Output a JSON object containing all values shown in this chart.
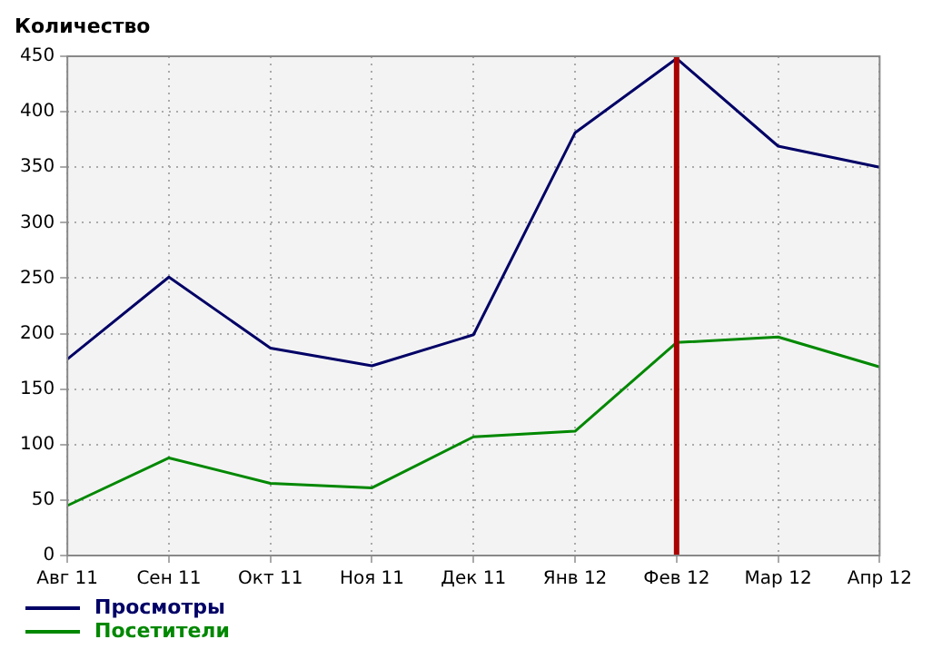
{
  "chart_data": {
    "type": "line",
    "ylabel": "Количество",
    "categories": [
      "Авг 11",
      "Сен 11",
      "Окт 11",
      "Ноя 11",
      "Дек 11",
      "Янв 12",
      "Фев 12",
      "Мар 12",
      "Апр 12"
    ],
    "series": [
      {
        "name": "Просмотры",
        "color": "#000066",
        "values": [
          177,
          251,
          187,
          171,
          199,
          381,
          448,
          369,
          350
        ]
      },
      {
        "name": "Посетители",
        "color": "#008800",
        "values": [
          45,
          88,
          65,
          61,
          107,
          112,
          192,
          197,
          170
        ]
      }
    ],
    "ylim": [
      0,
      450
    ],
    "yticks": [
      0,
      50,
      100,
      150,
      200,
      250,
      300,
      350,
      400,
      450
    ],
    "grid": true,
    "legend": "bottom left",
    "marker": "none",
    "line_style": "solid",
    "ref_lines": [
      {
        "axis": "x",
        "value": "Фев 12",
        "color": "#aa0000"
      }
    ]
  }
}
